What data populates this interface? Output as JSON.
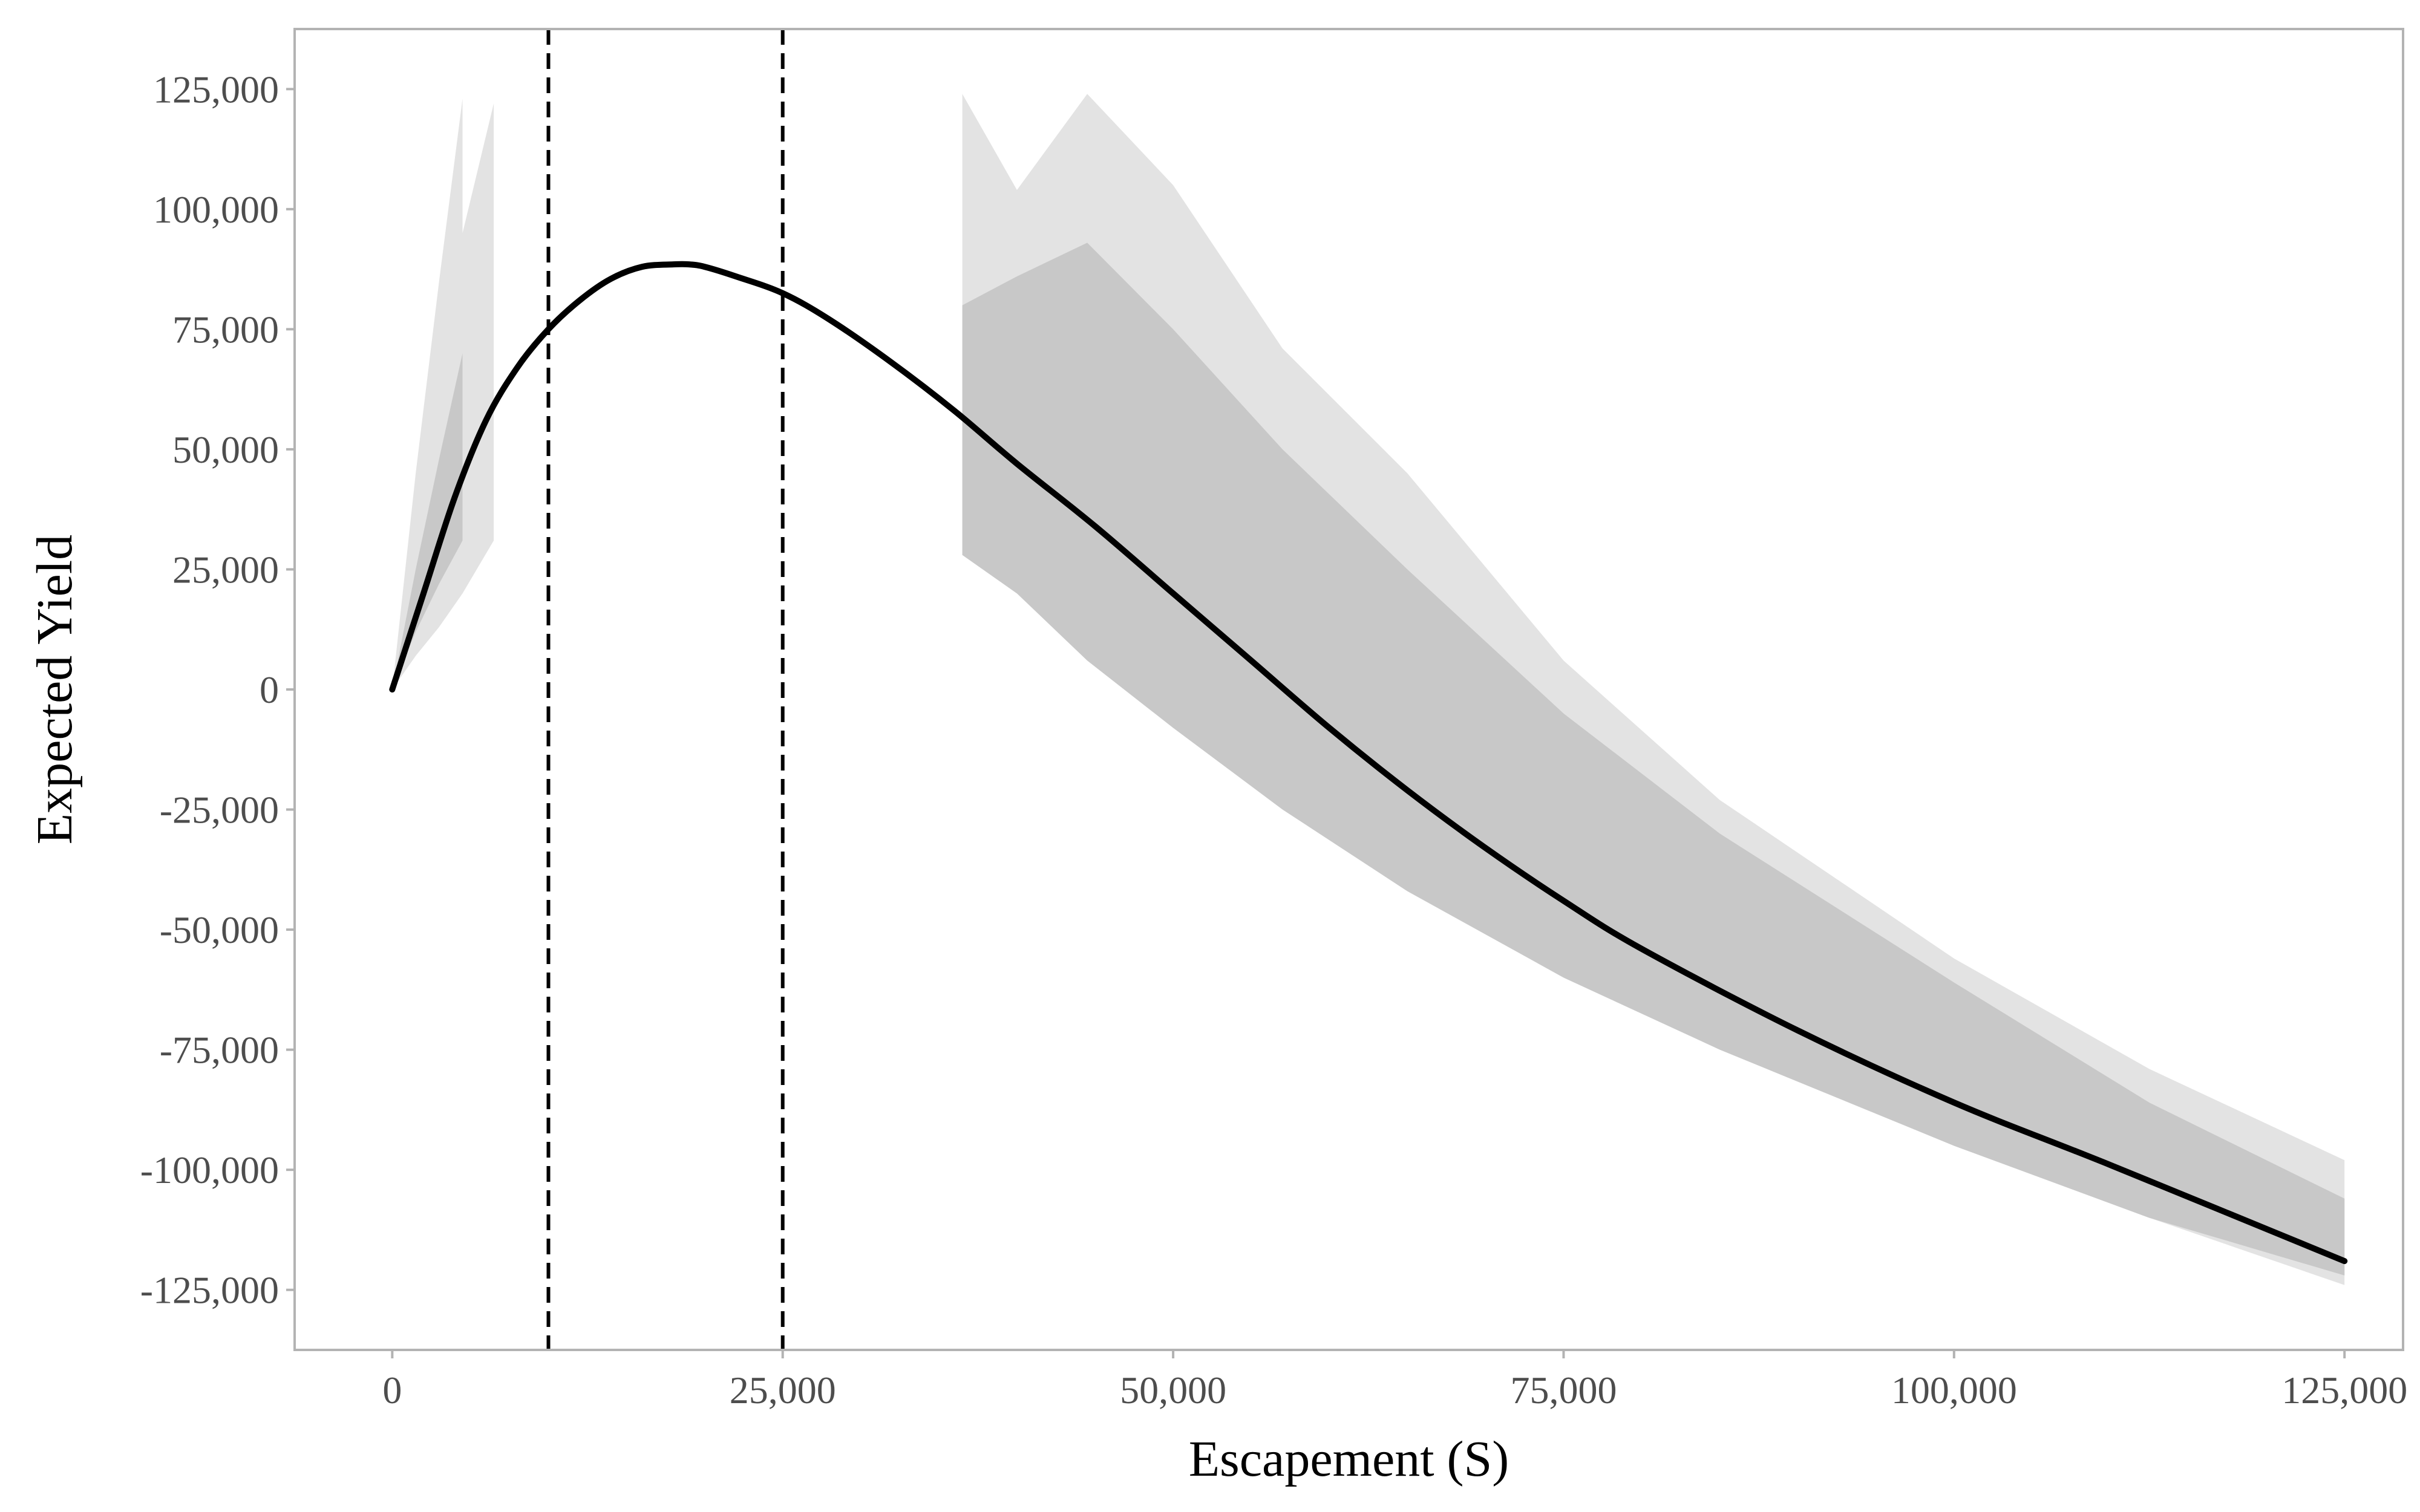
{
  "chart_data": {
    "type": "line",
    "title": "",
    "xlabel": "Escapement (S)",
    "ylabel": "Expected Yield",
    "xlim": [
      -6250,
      128750
    ],
    "ylim": [
      -137500,
      137500
    ],
    "x_ticks": [
      0,
      25000,
      50000,
      75000,
      100000,
      125000
    ],
    "x_tick_labels": [
      "0",
      "25,000",
      "50,000",
      "75,000",
      "100,000",
      "125,000"
    ],
    "y_ticks": [
      125000,
      100000,
      75000,
      50000,
      25000,
      0,
      -25000,
      -50000,
      -75000,
      -100000,
      -125000
    ],
    "y_tick_labels": [
      "125,000",
      "100,000",
      "75,000",
      "50,000",
      "25,000",
      "0",
      "-25,000",
      "-50,000",
      "-75,000",
      "-100,000",
      "-125,000"
    ],
    "grid": false,
    "vlines": [
      10000,
      25000
    ],
    "colors": {
      "line": "#000000",
      "band_outer": "#e3e3e3",
      "band_inner": "#c8c8c8",
      "frame": "#b3b3b3",
      "tick_text": "#4d4d4d"
    },
    "series": [
      {
        "type": "line",
        "x": [
          0,
          2000,
          4000,
          6000,
          8000,
          10000,
          12000,
          14000,
          16000,
          18000,
          19000,
          20000,
          22000,
          25000,
          28000,
          32000,
          36000,
          40000,
          45000,
          50000,
          55000,
          60000,
          65000,
          70000,
          75000,
          80000,
          90000,
          100000,
          110000,
          125000
        ],
        "y": [
          0,
          20000,
          40000,
          56000,
          67000,
          75000,
          81000,
          85500,
          88000,
          88500,
          88500,
          88000,
          86000,
          82500,
          77000,
          68000,
          58000,
          47000,
          34000,
          20000,
          6000,
          -8000,
          -21000,
          -33000,
          -44000,
          -54000,
          -71000,
          -86000,
          -99000,
          -119000
        ]
      },
      {
        "type": "band",
        "level": "outer",
        "x": [
          0,
          1500,
          3000,
          4500
        ],
        "lower": [
          0,
          7000,
          13000,
          20000
        ],
        "upper": [
          0,
          45000,
          85000,
          123000
        ]
      },
      {
        "type": "band",
        "level": "outer",
        "x": [
          4500,
          6500
        ],
        "lower": [
          20000,
          31000
        ],
        "upper": [
          95000,
          122000
        ]
      },
      {
        "type": "band",
        "level": "inner",
        "x": [
          0,
          1500,
          3000,
          4500
        ],
        "lower": [
          0,
          12000,
          22000,
          31000
        ],
        "upper": [
          0,
          25000,
          48000,
          70000
        ]
      },
      {
        "type": "band",
        "level": "outer",
        "x": [
          36500,
          40000,
          44500,
          50000,
          57000,
          65000,
          75000,
          85000,
          100000,
          112500,
          125000
        ],
        "lower": [
          28000,
          20000,
          9000,
          -5000,
          -22000,
          -40000,
          -58000,
          -74000,
          -95000,
          -110000,
          -124000
        ],
        "upper": [
          124000,
          104000,
          124000,
          105000,
          71000,
          45000,
          6000,
          -23000,
          -56000,
          -79000,
          -98000
        ]
      },
      {
        "type": "band",
        "level": "inner",
        "x": [
          36500,
          40000,
          44500,
          50000,
          57000,
          65000,
          75000,
          85000,
          100000,
          112500,
          125000
        ],
        "lower": [
          28000,
          20000,
          6000,
          -8000,
          -25000,
          -42000,
          -60000,
          -75000,
          -95000,
          -110000,
          -122000
        ],
        "upper": [
          80000,
          86000,
          93000,
          75000,
          50000,
          25000,
          -5000,
          -30000,
          -61000,
          -86000,
          -106000
        ]
      }
    ]
  }
}
